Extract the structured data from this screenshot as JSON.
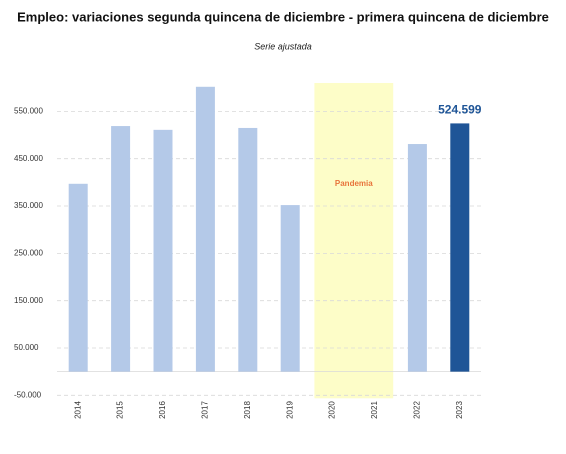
{
  "chart_data": {
    "type": "bar",
    "title": "Empleo: variaciones segunda quincena de diciembre - primera quincena de diciembre",
    "subtitle": "Serie ajustada",
    "annotation": "Pandemia",
    "categories": [
      "2014",
      "2015",
      "2016",
      "2017",
      "2018",
      "2019",
      "2020",
      "2021",
      "2022",
      "2023"
    ],
    "values": [
      397000,
      519000,
      511000,
      602000,
      515000,
      352000,
      null,
      null,
      481000,
      524599
    ],
    "value_labels": [
      null,
      null,
      null,
      null,
      null,
      null,
      null,
      null,
      null,
      "524.599"
    ],
    "colors": [
      "#b4c9e8",
      "#b4c9e8",
      "#b4c9e8",
      "#b4c9e8",
      "#b4c9e8",
      "#b4c9e8",
      "#b4c9e8",
      "#b4c9e8",
      "#b4c9e8",
      "#1f5597"
    ],
    "ylim": [
      -50000,
      610000
    ],
    "yticks": [
      {
        "value": -50000,
        "label": "-50.000"
      },
      {
        "value": 50000,
        "label": "50.000"
      },
      {
        "value": 150000,
        "label": "150.000"
      },
      {
        "value": 250000,
        "label": "250.000"
      },
      {
        "value": 350000,
        "label": "350.000"
      },
      {
        "value": 450000,
        "label": "450.000"
      },
      {
        "value": 550000,
        "label": "550.000"
      }
    ],
    "grid": true
  }
}
